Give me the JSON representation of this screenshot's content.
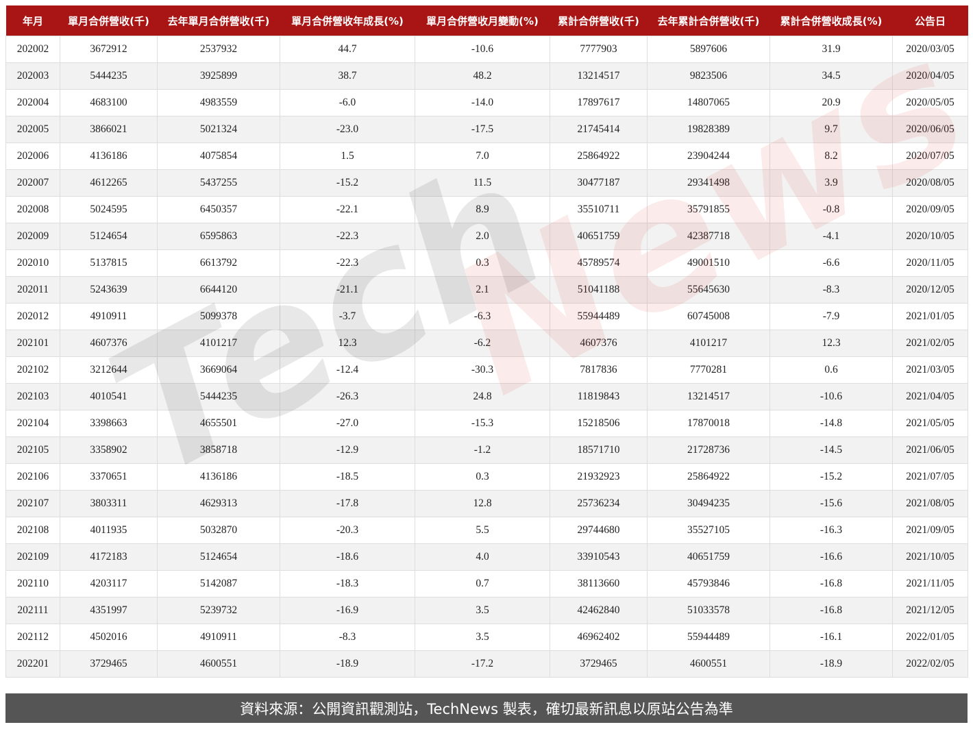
{
  "table": {
    "headers": [
      "年月",
      "單月合併營收(千)",
      "去年單月合併營收(千)",
      "單月合併營收年成長(%)",
      "單月合併營收月變動(%)",
      "累計合併營收(千)",
      "去年累計合併營收(千)",
      "累計合併營收成長(%)",
      "公告日"
    ],
    "rows": [
      [
        "202002",
        "3672912",
        "2537932",
        "44.7",
        "-10.6",
        "7777903",
        "5897606",
        "31.9",
        "2020/03/05"
      ],
      [
        "202003",
        "5444235",
        "3925899",
        "38.7",
        "48.2",
        "13214517",
        "9823506",
        "34.5",
        "2020/04/05"
      ],
      [
        "202004",
        "4683100",
        "4983559",
        "-6.0",
        "-14.0",
        "17897617",
        "14807065",
        "20.9",
        "2020/05/05"
      ],
      [
        "202005",
        "3866021",
        "5021324",
        "-23.0",
        "-17.5",
        "21745414",
        "19828389",
        "9.7",
        "2020/06/05"
      ],
      [
        "202006",
        "4136186",
        "4075854",
        "1.5",
        "7.0",
        "25864922",
        "23904244",
        "8.2",
        "2020/07/05"
      ],
      [
        "202007",
        "4612265",
        "5437255",
        "-15.2",
        "11.5",
        "30477187",
        "29341498",
        "3.9",
        "2020/08/05"
      ],
      [
        "202008",
        "5024595",
        "6450357",
        "-22.1",
        "8.9",
        "35510711",
        "35791855",
        "-0.8",
        "2020/09/05"
      ],
      [
        "202009",
        "5124654",
        "6595863",
        "-22.3",
        "2.0",
        "40651759",
        "42387718",
        "-4.1",
        "2020/10/05"
      ],
      [
        "202010",
        "5137815",
        "6613792",
        "-22.3",
        "0.3",
        "45789574",
        "49001510",
        "-6.6",
        "2020/11/05"
      ],
      [
        "202011",
        "5243639",
        "6644120",
        "-21.1",
        "2.1",
        "51041188",
        "55645630",
        "-8.3",
        "2020/12/05"
      ],
      [
        "202012",
        "4910911",
        "5099378",
        "-3.7",
        "-6.3",
        "55944489",
        "60745008",
        "-7.9",
        "2021/01/05"
      ],
      [
        "202101",
        "4607376",
        "4101217",
        "12.3",
        "-6.2",
        "4607376",
        "4101217",
        "12.3",
        "2021/02/05"
      ],
      [
        "202102",
        "3212644",
        "3669064",
        "-12.4",
        "-30.3",
        "7817836",
        "7770281",
        "0.6",
        "2021/03/05"
      ],
      [
        "202103",
        "4010541",
        "5444235",
        "-26.3",
        "24.8",
        "11819843",
        "13214517",
        "-10.6",
        "2021/04/05"
      ],
      [
        "202104",
        "3398663",
        "4655501",
        "-27.0",
        "-15.3",
        "15218506",
        "17870018",
        "-14.8",
        "2021/05/05"
      ],
      [
        "202105",
        "3358902",
        "3858718",
        "-12.9",
        "-1.2",
        "18571710",
        "21728736",
        "-14.5",
        "2021/06/05"
      ],
      [
        "202106",
        "3370651",
        "4136186",
        "-18.5",
        "0.3",
        "21932923",
        "25864922",
        "-15.2",
        "2021/07/05"
      ],
      [
        "202107",
        "3803311",
        "4629313",
        "-17.8",
        "12.8",
        "25736234",
        "30494235",
        "-15.6",
        "2021/08/05"
      ],
      [
        "202108",
        "4011935",
        "5032870",
        "-20.3",
        "5.5",
        "29744680",
        "35527105",
        "-16.3",
        "2021/09/05"
      ],
      [
        "202109",
        "4172183",
        "5124654",
        "-18.6",
        "4.0",
        "33910543",
        "40651759",
        "-16.6",
        "2021/10/05"
      ],
      [
        "202110",
        "4203117",
        "5142087",
        "-18.3",
        "0.7",
        "38113660",
        "45793846",
        "-16.8",
        "2021/11/05"
      ],
      [
        "202111",
        "4351997",
        "5239732",
        "-16.9",
        "3.5",
        "42462840",
        "51033578",
        "-16.8",
        "2021/12/05"
      ],
      [
        "202112",
        "4502016",
        "4910911",
        "-8.3",
        "3.5",
        "46962402",
        "55944489",
        "-16.1",
        "2022/01/05"
      ],
      [
        "202201",
        "3729465",
        "4600551",
        "-18.9",
        "-17.2",
        "3729465",
        "4600551",
        "-18.9",
        "2022/02/05"
      ]
    ]
  },
  "footer": {
    "source": "資料來源：公開資訊觀測站，TechNews 製表，確切最新訊息以原站公告為準"
  },
  "watermark": {
    "tech": "Tech",
    "news": "News"
  },
  "colors": {
    "header_bg": "#a91515",
    "footer_bg": "#555555"
  }
}
